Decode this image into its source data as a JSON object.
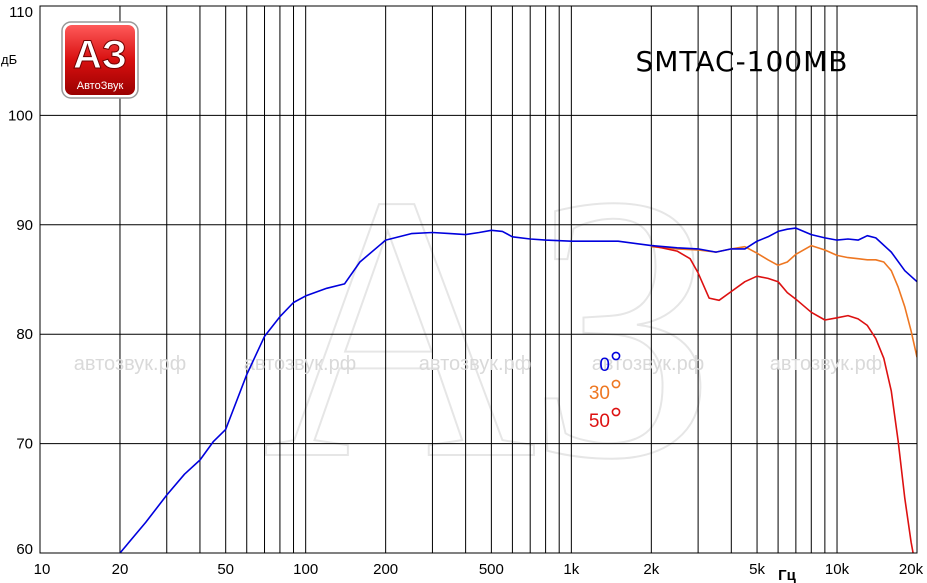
{
  "chart_data": {
    "type": "line",
    "title": "SMTAC-100MB",
    "ylabel": "дБ",
    "xlabel": "Гц",
    "xscale": "log",
    "xlim": [
      10,
      20000
    ],
    "ylim": [
      60,
      110
    ],
    "grid": true,
    "legend_placement": "center",
    "yticks": [
      "60",
      "70",
      "80",
      "90",
      "100",
      "110"
    ],
    "xticks": [
      "10",
      "20",
      "50",
      "100",
      "200",
      "500",
      "1k",
      "2k",
      "5k",
      "10k",
      "20k"
    ],
    "series": [
      {
        "name": "0°",
        "legend_num": "0",
        "color": "#0000dd",
        "x": [
          20,
          25,
          30,
          35,
          40,
          45,
          50,
          60,
          70,
          80,
          90,
          100,
          120,
          140,
          160,
          200,
          250,
          300,
          350,
          400,
          450,
          500,
          550,
          600,
          700,
          800,
          1000,
          1200,
          1500,
          2000,
          2500,
          3000,
          3500,
          4000,
          4500,
          5000,
          5500,
          6000,
          6500,
          7000,
          8000,
          9000,
          10000,
          11000,
          12000,
          13000,
          14000,
          16000,
          18000,
          20000
        ],
        "y": [
          60,
          62.8,
          65.3,
          67.2,
          68.5,
          70.2,
          71.3,
          76.3,
          79.8,
          81.6,
          82.9,
          83.5,
          84.2,
          84.6,
          86.6,
          88.6,
          89.2,
          89.3,
          89.2,
          89.1,
          89.3,
          89.5,
          89.4,
          88.9,
          88.7,
          88.6,
          88.5,
          88.5,
          88.5,
          88.1,
          87.9,
          87.8,
          87.5,
          87.8,
          87.8,
          88.5,
          88.9,
          89.4,
          89.6,
          89.7,
          89.1,
          88.8,
          88.6,
          88.7,
          88.6,
          89.0,
          88.8,
          87.5,
          85.8,
          84.8
        ]
      },
      {
        "name": "30°",
        "legend_num": "30",
        "color": "#ee7722",
        "x": [
          2000,
          2500,
          3000,
          3500,
          4000,
          4500,
          5000,
          5500,
          6000,
          6500,
          7000,
          8000,
          9000,
          10000,
          11000,
          12000,
          13000,
          14000,
          15000,
          16000,
          17000,
          18000,
          19000,
          20000
        ],
        "y": [
          88.0,
          87.8,
          87.7,
          87.5,
          87.8,
          88.0,
          87.4,
          86.8,
          86.3,
          86.6,
          87.3,
          88.1,
          87.7,
          87.2,
          87.0,
          86.9,
          86.8,
          86.8,
          86.6,
          85.8,
          84.3,
          82.5,
          80.3,
          77.9
        ]
      },
      {
        "name": "50°",
        "legend_num": "50",
        "color": "#dd1111",
        "x": [
          2000,
          2500,
          2800,
          3000,
          3300,
          3600,
          4000,
          4500,
          5000,
          5500,
          6000,
          6500,
          7000,
          8000,
          9000,
          10000,
          11000,
          12000,
          13000,
          14000,
          15000,
          16000,
          17000,
          18000,
          19000,
          19500
        ],
        "y": [
          88.1,
          87.6,
          86.9,
          85.6,
          83.3,
          83.1,
          83.9,
          84.8,
          85.3,
          85.1,
          84.8,
          83.8,
          83.2,
          82.0,
          81.3,
          81.5,
          81.7,
          81.4,
          80.8,
          79.6,
          77.8,
          74.8,
          70.2,
          65.0,
          61.0,
          59.5
        ]
      }
    ]
  },
  "logo": {
    "mark": "АЗ",
    "caption": "АвтоЗвук"
  },
  "watermark_text": "автозвук.рф",
  "watermark_monogram": "АЗ"
}
